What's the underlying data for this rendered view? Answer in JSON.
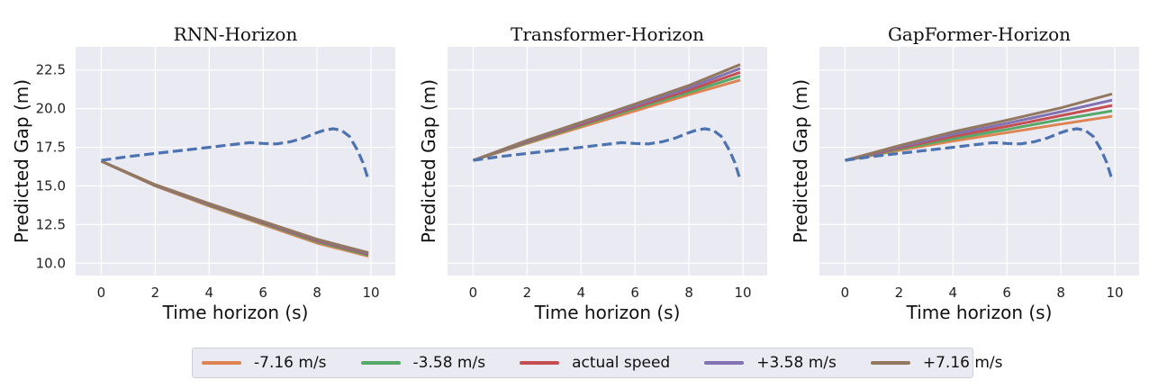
{
  "colors": {
    "background": "#eaeaf2",
    "grid": "#ffffff",
    "actual": "#4c72b0"
  },
  "chart_data": [
    {
      "type": "line",
      "title": "RNN-Horizon",
      "xlabel": "Time horizon (s)",
      "ylabel": "Predicted Gap (m)",
      "xlim": [
        -0.95,
        10.9
      ],
      "ylim": [
        9.2,
        24.0
      ],
      "xticks": [
        "0",
        "2",
        "4",
        "6",
        "8",
        "10"
      ],
      "yticks": [
        "10.0",
        "12.5",
        "15.0",
        "17.5",
        "20.0",
        "22.5"
      ],
      "show_ytick_labels": true,
      "grid": true,
      "series": [
        {
          "name": "-7.16 m/s",
          "color": "#dd8452",
          "style": "solid",
          "x": [
            0,
            2,
            4,
            6,
            8,
            9.9
          ],
          "y": [
            16.6,
            15.0,
            13.7,
            12.5,
            11.3,
            10.45
          ]
        },
        {
          "name": "-3.58 m/s",
          "color": "#55a868",
          "style": "solid",
          "x": [
            0,
            2,
            4,
            6,
            8,
            9.9
          ],
          "y": [
            16.6,
            15.02,
            13.75,
            12.57,
            11.38,
            10.52
          ]
        },
        {
          "name": "actual speed",
          "color": "#c44e52",
          "style": "solid",
          "x": [
            0,
            2,
            4,
            6,
            8,
            9.9
          ],
          "y": [
            16.6,
            15.04,
            13.8,
            12.62,
            11.45,
            10.58
          ]
        },
        {
          "name": "+3.58 m/s",
          "color": "#8172b3",
          "style": "solid",
          "x": [
            0,
            2,
            4,
            6,
            8,
            9.9
          ],
          "y": [
            16.6,
            15.06,
            13.83,
            12.66,
            11.5,
            10.63
          ]
        },
        {
          "name": "+7.16 m/s",
          "color": "#937860",
          "style": "solid",
          "x": [
            0,
            2,
            4,
            6,
            8,
            9.9
          ],
          "y": [
            16.6,
            15.08,
            13.86,
            12.7,
            11.55,
            10.68
          ]
        },
        {
          "name": "",
          "color": "#4c72b0",
          "style": "dashed",
          "x": [
            0,
            1,
            2,
            3,
            4,
            5,
            5.5,
            6,
            6.5,
            7,
            7.5,
            8,
            8.3,
            8.6,
            8.9,
            9.2,
            9.5,
            9.7,
            9.9
          ],
          "y": [
            16.65,
            16.9,
            17.1,
            17.3,
            17.5,
            17.7,
            17.8,
            17.75,
            17.72,
            17.85,
            18.1,
            18.45,
            18.62,
            18.7,
            18.6,
            18.2,
            17.3,
            16.5,
            15.4
          ]
        }
      ]
    },
    {
      "type": "line",
      "title": "Transformer-Horizon",
      "xlabel": "Time horizon (s)",
      "ylabel": "Predicted Gap (m)",
      "xlim": [
        -0.95,
        10.9
      ],
      "ylim": [
        9.2,
        24.0
      ],
      "xticks": [
        "0",
        "2",
        "4",
        "6",
        "8",
        "10"
      ],
      "yticks": [
        "10.0",
        "12.5",
        "15.0",
        "17.5",
        "20.0",
        "22.5"
      ],
      "show_ytick_labels": false,
      "grid": true,
      "series": [
        {
          "name": "-7.16 m/s",
          "color": "#dd8452",
          "style": "solid",
          "x": [
            0,
            2,
            4,
            6,
            8,
            9.9
          ],
          "y": [
            16.65,
            17.75,
            18.8,
            19.85,
            20.9,
            21.85
          ]
        },
        {
          "name": "-3.58 m/s",
          "color": "#55a868",
          "style": "solid",
          "x": [
            0,
            2,
            4,
            6,
            8,
            9.9
          ],
          "y": [
            16.65,
            17.8,
            18.9,
            20.0,
            21.05,
            22.1
          ]
        },
        {
          "name": "actual speed",
          "color": "#c44e52",
          "style": "solid",
          "x": [
            0,
            2,
            4,
            6,
            8,
            9.9
          ],
          "y": [
            16.65,
            17.85,
            18.97,
            20.1,
            21.2,
            22.35
          ]
        },
        {
          "name": "+3.58 m/s",
          "color": "#8172b3",
          "style": "solid",
          "x": [
            0,
            2,
            4,
            6,
            8,
            9.9
          ],
          "y": [
            16.65,
            17.9,
            19.05,
            20.2,
            21.35,
            22.6
          ]
        },
        {
          "name": "+7.16 m/s",
          "color": "#937860",
          "style": "solid",
          "x": [
            0,
            2,
            4,
            6,
            8,
            9.9
          ],
          "y": [
            16.65,
            17.95,
            19.12,
            20.3,
            21.5,
            22.85
          ]
        },
        {
          "name": "",
          "color": "#4c72b0",
          "style": "dashed",
          "x": [
            0,
            1,
            2,
            3,
            4,
            5,
            5.5,
            6,
            6.5,
            7,
            7.5,
            8,
            8.3,
            8.6,
            8.9,
            9.2,
            9.5,
            9.7,
            9.9
          ],
          "y": [
            16.65,
            16.9,
            17.1,
            17.3,
            17.5,
            17.7,
            17.8,
            17.75,
            17.72,
            17.85,
            18.1,
            18.45,
            18.62,
            18.7,
            18.6,
            18.2,
            17.3,
            16.5,
            15.4
          ]
        }
      ]
    },
    {
      "type": "line",
      "title": "GapFormer-Horizon",
      "xlabel": "Time horizon (s)",
      "ylabel": "Predicted Gap (m)",
      "xlim": [
        -0.95,
        10.9
      ],
      "ylim": [
        9.2,
        24.0
      ],
      "xticks": [
        "0",
        "2",
        "4",
        "6",
        "8",
        "10"
      ],
      "yticks": [
        "10.0",
        "12.5",
        "15.0",
        "17.5",
        "20.0",
        "22.5"
      ],
      "show_ytick_labels": false,
      "grid": true,
      "series": [
        {
          "name": "-7.16 m/s",
          "color": "#dd8452",
          "style": "solid",
          "x": [
            0,
            2,
            4,
            6,
            8,
            9.9
          ],
          "y": [
            16.65,
            17.3,
            17.9,
            18.45,
            19.0,
            19.5
          ]
        },
        {
          "name": "-3.58 m/s",
          "color": "#55a868",
          "style": "solid",
          "x": [
            0,
            2,
            4,
            6,
            8,
            9.9
          ],
          "y": [
            16.65,
            17.38,
            18.05,
            18.65,
            19.3,
            19.85
          ]
        },
        {
          "name": "actual speed",
          "color": "#c44e52",
          "style": "solid",
          "x": [
            0,
            2,
            4,
            6,
            8,
            9.9
          ],
          "y": [
            16.65,
            17.45,
            18.2,
            18.85,
            19.55,
            20.2
          ]
        },
        {
          "name": "+3.58 m/s",
          "color": "#8172b3",
          "style": "solid",
          "x": [
            0,
            2,
            4,
            6,
            8,
            9.9
          ],
          "y": [
            16.65,
            17.52,
            18.35,
            19.05,
            19.8,
            20.55
          ]
        },
        {
          "name": "+7.16 m/s",
          "color": "#937860",
          "style": "solid",
          "x": [
            0,
            2,
            4,
            6,
            8,
            9.9
          ],
          "y": [
            16.65,
            17.6,
            18.5,
            19.25,
            20.05,
            20.95
          ]
        },
        {
          "name": "",
          "color": "#4c72b0",
          "style": "dashed",
          "x": [
            0,
            1,
            2,
            3,
            4,
            5,
            5.5,
            6,
            6.5,
            7,
            7.5,
            8,
            8.3,
            8.6,
            8.9,
            9.2,
            9.5,
            9.7,
            9.9
          ],
          "y": [
            16.65,
            16.9,
            17.1,
            17.3,
            17.5,
            17.7,
            17.8,
            17.75,
            17.72,
            17.85,
            18.1,
            18.45,
            18.62,
            18.7,
            18.6,
            18.2,
            17.3,
            16.5,
            15.4
          ]
        }
      ]
    }
  ],
  "legend": {
    "placement": "bottom-center",
    "items": [
      {
        "label": "-7.16 m/s",
        "color": "#dd8452"
      },
      {
        "label": "-3.58 m/s",
        "color": "#55a868"
      },
      {
        "label": "actual speed",
        "color": "#c44e52"
      },
      {
        "label": "+3.58 m/s",
        "color": "#8172b3"
      },
      {
        "label": "+7.16 m/s",
        "color": "#937860"
      }
    ]
  }
}
